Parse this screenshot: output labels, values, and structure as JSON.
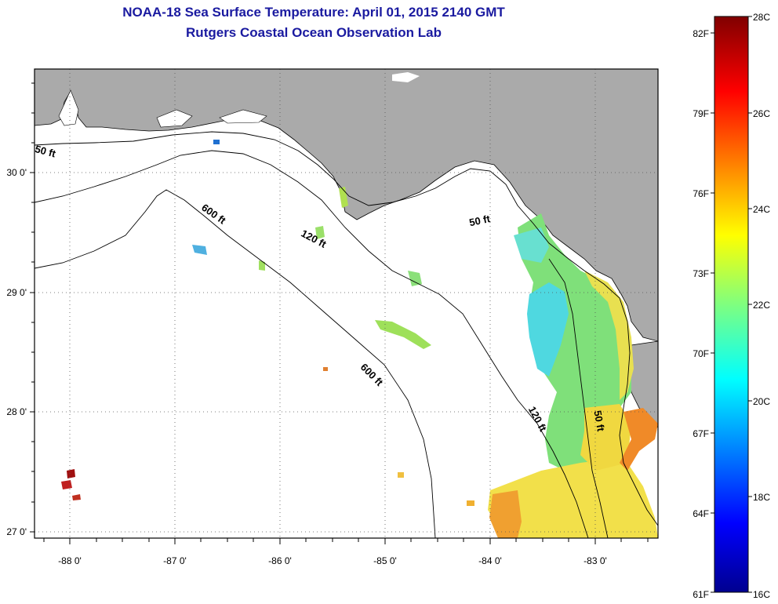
{
  "title": {
    "line1": "NOAA-18 Sea Surface Temperature:  April 01, 2015 2140 GMT",
    "line2": "Rutgers Coastal Ocean Observation Lab"
  },
  "map": {
    "lon_ticks": [
      "-88 0'",
      "-87 0'",
      "-86 0'",
      "-85 0'",
      "-84 0'",
      "-83 0'"
    ],
    "lat_ticks": [
      "30 0'",
      "29 0'",
      "28 0'",
      "27 0'"
    ],
    "contour_labels": [
      "50 ft",
      "600 ft",
      "120 ft",
      "50 ft",
      "600 ft",
      "120 ft",
      "50 ft"
    ],
    "colors": {
      "land": "#aaaaaa",
      "water": "#ffffff",
      "frame": "#000000"
    }
  },
  "colorbar": {
    "celsius_labels": [
      "28C",
      "26C",
      "24C",
      "22C",
      "20C",
      "18C",
      "16C"
    ],
    "fahrenheit_labels": [
      "82F",
      "79F",
      "76F",
      "73F",
      "70F",
      "67F",
      "64F",
      "61F"
    ],
    "range_c": [
      16,
      28
    ]
  }
}
